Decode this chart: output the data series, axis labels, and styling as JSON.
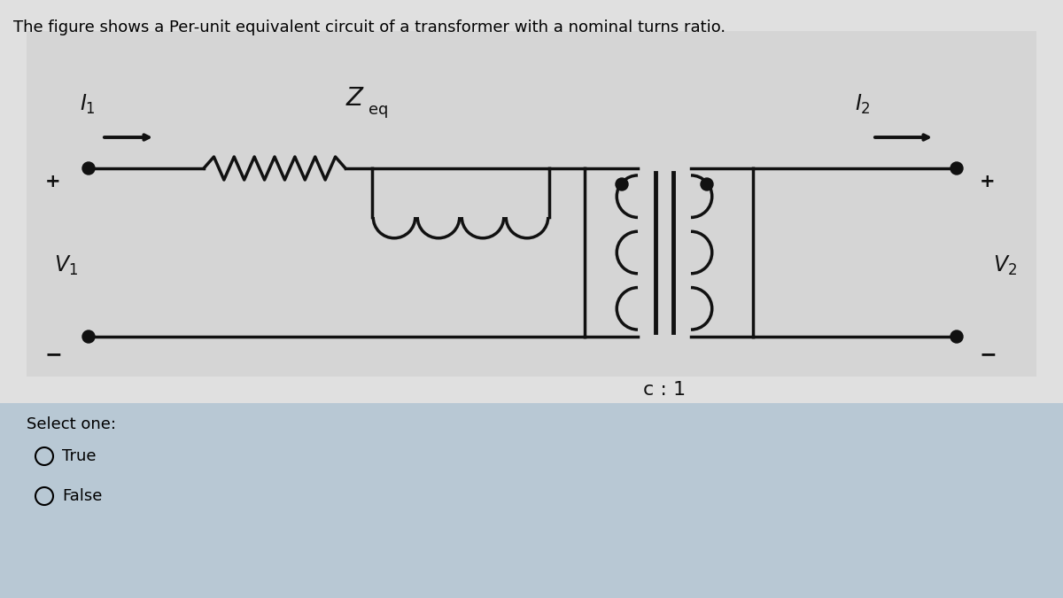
{
  "title": "The figure shows a Per-unit equivalent circuit of a transformer with a nominal turns ratio.",
  "title_fontsize": 13,
  "bg_top": "#e0e0e0",
  "bg_circuit": "#d8d8d8",
  "bg_bottom": "#b8c8d4",
  "line_color": "#111111",
  "line_width": 2.5,
  "select_one_text": "Select one:",
  "true_text": "True",
  "false_text": "False",
  "ratio_label": "c : 1"
}
